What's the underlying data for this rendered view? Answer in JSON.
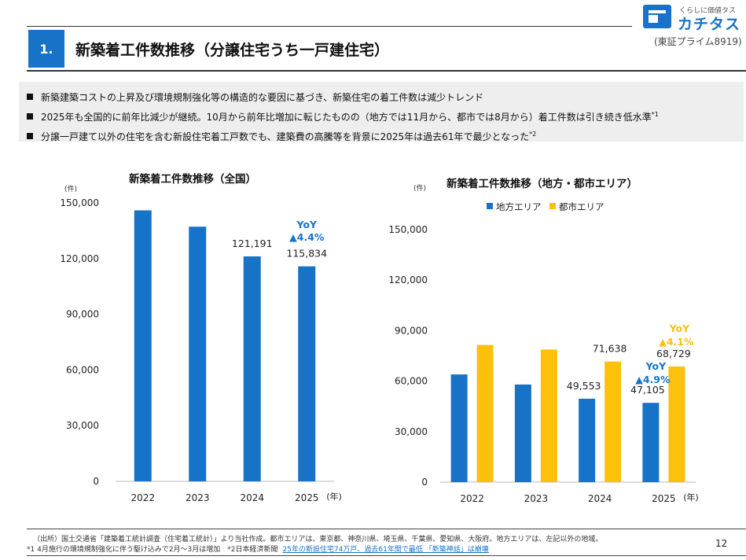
{
  "header": {
    "section_number": "1.",
    "title": "新築着工件数推移（分譲住宅うち一戸建住宅）",
    "logo_tagline": "くらしに価値タス",
    "logo_name": "カチタス",
    "exchange": "(東証プライム8919)"
  },
  "bullets": [
    {
      "text": "新築建築コストの上昇及び環境規制強化等の構造的な要因に基づき、新築住宅の着工件数は減少トレンド",
      "note": ""
    },
    {
      "text": "2025年も全国的に前年比減少が継続。10月から前年比増加に転じたものの（地方では11月から、都市では8月から）着工件数は引き続き低水準",
      "note": "*1"
    },
    {
      "text": "分譲一戸建て以外の住宅を含む新設住宅着工戸数でも、建築費の高騰等を背景に2025年は過去61年で最少となった",
      "note": "*2"
    }
  ],
  "colors": {
    "accent": "#1673c8",
    "local": "#1673c8",
    "urban": "#fcc10a"
  },
  "chart_data": [
    {
      "type": "bar",
      "title": "新築着工件数推移（全国）",
      "ylabel": "(件)",
      "xunit": "(年)",
      "categories": [
        "2022",
        "2023",
        "2024",
        "2025"
      ],
      "values": [
        146000,
        137200,
        121191,
        115834
      ],
      "data_labels": [
        "",
        "",
        "121,191",
        "115,834"
      ],
      "yticks": [
        "0",
        "30,000",
        "60,000",
        "90,000",
        "120,000",
        "150,000"
      ],
      "ylim": [
        0,
        150000
      ],
      "annotation": {
        "line1": "YoY",
        "line2": "▲4.4%"
      },
      "grid": false
    },
    {
      "type": "bar",
      "title": "新築着工件数推移（地方・都市エリア）",
      "ylabel": "(件)",
      "xunit": "(年)",
      "categories": [
        "2022",
        "2023",
        "2024",
        "2025"
      ],
      "series": [
        {
          "name": "地方エリア",
          "values": [
            64000,
            58000,
            49553,
            47105
          ],
          "data_labels": [
            "",
            "",
            "49,553",
            "47,105"
          ]
        },
        {
          "name": "都市エリア",
          "values": [
            81500,
            78800,
            71638,
            68729
          ],
          "data_labels": [
            "",
            "",
            "71,638",
            "68,729"
          ]
        }
      ],
      "yticks": [
        "0",
        "30,000",
        "60,000",
        "90,000",
        "120,000",
        "150,000"
      ],
      "ylim": [
        0,
        150000
      ],
      "legend_position": "top-left",
      "annotations": [
        {
          "line1": "YoY",
          "line2": "▲4.9%",
          "series": "地方エリア"
        },
        {
          "line1": "YoY",
          "line2": "▲4.1%",
          "series": "都市エリア"
        }
      ],
      "grid": false
    }
  ],
  "footer": {
    "source": "（出所）国土交通省「建築着工統計調査（住宅着工統計）」より当社作成。都市エリアは、東京都、神奈川県、埼玉県、千葉県、愛知県、大阪府。地方エリアは、左記以外の地域。",
    "note": "*1 4月施行の環境規制強化に伴う駆け込みで2月～3月は増加　*2日本経済新聞",
    "link": "25年の新設住宅74万戸、過去61年間で最低 「新築神話」は崩壊",
    "page_number": "12"
  }
}
